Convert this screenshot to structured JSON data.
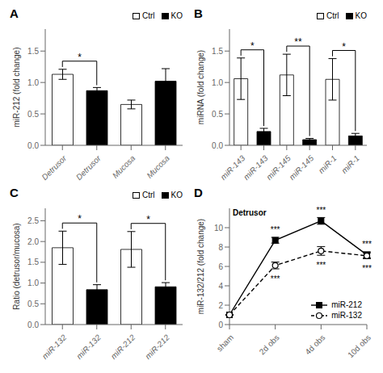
{
  "chart_data": [
    {
      "type": "bar",
      "title": "A",
      "ylabel": "miR-212 (fold change)",
      "categories": [
        "Detrusor",
        "Detrusor",
        "Mucosa",
        "Mucosa"
      ],
      "series": [
        {
          "name": "Ctrl",
          "color": "white",
          "values": [
            1.13,
            null,
            0.65,
            null
          ],
          "errors": [
            0.08,
            null,
            0.07,
            null
          ]
        },
        {
          "name": "KO",
          "color": "black",
          "values": [
            null,
            0.87,
            null,
            1.02
          ],
          "errors": [
            null,
            0.05,
            null,
            0.2
          ]
        }
      ],
      "ylim": [
        0,
        1.85
      ],
      "yticks": [
        {
          "value": 0,
          "label": "0.0"
        },
        0.5,
        {
          "value": 1,
          "label": "1.0"
        },
        1.5
      ],
      "annotations": [
        {
          "from": 0,
          "to": 1,
          "text": "*"
        }
      ],
      "legend": "upper right",
      "grid": false
    },
    {
      "type": "bar",
      "title": "B",
      "ylabel": "miRNA (fold change)",
      "categories": [
        "miR-143",
        "miR-143",
        "miR-145",
        "miR-145",
        "miR-1",
        "miR-1"
      ],
      "series": [
        {
          "name": "Ctrl",
          "color": "white",
          "values": [
            1.06,
            null,
            1.12,
            null,
            1.05,
            null
          ],
          "errors": [
            0.33,
            null,
            0.33,
            null,
            0.33,
            null
          ]
        },
        {
          "name": "KO",
          "color": "black",
          "values": [
            null,
            0.22,
            null,
            0.09,
            null,
            0.15
          ],
          "errors": [
            null,
            0.05,
            null,
            0.02,
            null,
            0.04
          ]
        }
      ],
      "ylim": [
        0,
        1.85
      ],
      "yticks": [
        {
          "value": 0,
          "label": "0.0"
        },
        0.5,
        {
          "value": 1,
          "label": "1.0"
        },
        1.5
      ],
      "annotations": [
        {
          "from": 0,
          "to": 1,
          "text": "*"
        },
        {
          "from": 2,
          "to": 3,
          "text": "**"
        },
        {
          "from": 4,
          "to": 5,
          "text": "*"
        }
      ],
      "legend": "upper right",
      "grid": false
    },
    {
      "type": "bar",
      "title": "C",
      "ylabel": "Ratio (detrusor/mucosa)",
      "categories": [
        "miR-132",
        "miR-132",
        "miR-212",
        "miR-212"
      ],
      "series": [
        {
          "name": "Ctrl",
          "color": "white",
          "values": [
            1.85,
            null,
            1.81,
            null
          ],
          "errors": [
            0.4,
            null,
            0.43,
            null
          ]
        },
        {
          "name": "KO",
          "color": "black",
          "values": [
            null,
            0.84,
            null,
            0.91
          ],
          "errors": [
            null,
            0.12,
            null,
            0.1
          ]
        }
      ],
      "ylim": [
        0,
        2.8
      ],
      "yticks": [
        {
          "value": 0,
          "label": "0.0"
        },
        0.5,
        {
          "value": 1,
          "label": "1.0"
        },
        1.5,
        {
          "value": 2,
          "label": "2.0"
        },
        2.5
      ],
      "annotations": [
        {
          "from": 0,
          "to": 1,
          "text": "*"
        },
        {
          "from": 2,
          "to": 3,
          "text": "*"
        }
      ],
      "legend": "upper right",
      "grid": false
    },
    {
      "type": "line",
      "title": "D",
      "subtitle": "Detrusor",
      "ylabel": "miR-132/212 (fold change)",
      "categories": [
        "sham",
        "2d obs",
        "4d obs",
        "10d obs"
      ],
      "series": [
        {
          "name": "miR-212",
          "color": "black",
          "marker": "square",
          "line_style": "solid",
          "values": [
            1.0,
            8.7,
            10.7,
            7.2
          ],
          "errors": [
            0.05,
            0.3,
            0.35,
            0.3
          ]
        },
        {
          "name": "miR-132",
          "color": "black",
          "marker": "open_circle",
          "line_style": "dashed",
          "values": [
            1.0,
            6.1,
            7.6,
            7.1
          ],
          "errors": [
            0.05,
            0.35,
            0.45,
            0.3
          ]
        }
      ],
      "ylim": [
        0,
        12
      ],
      "yticks": [
        0,
        2,
        4,
        6,
        8,
        10
      ],
      "annotations": [
        {
          "series": "miR-212",
          "index": 1,
          "position": "above",
          "text": "***"
        },
        {
          "series": "miR-212",
          "index": 2,
          "position": "above",
          "text": "***"
        },
        {
          "series": "miR-212",
          "index": 3,
          "position": "above",
          "text": "***"
        },
        {
          "series": "miR-132",
          "index": 1,
          "position": "below",
          "text": "***"
        },
        {
          "series": "miR-132",
          "index": 2,
          "position": "below",
          "text": "***"
        },
        {
          "series": "miR-132",
          "index": 3,
          "position": "below",
          "text": "***"
        }
      ],
      "legend": "lower right",
      "grid": false
    }
  ]
}
